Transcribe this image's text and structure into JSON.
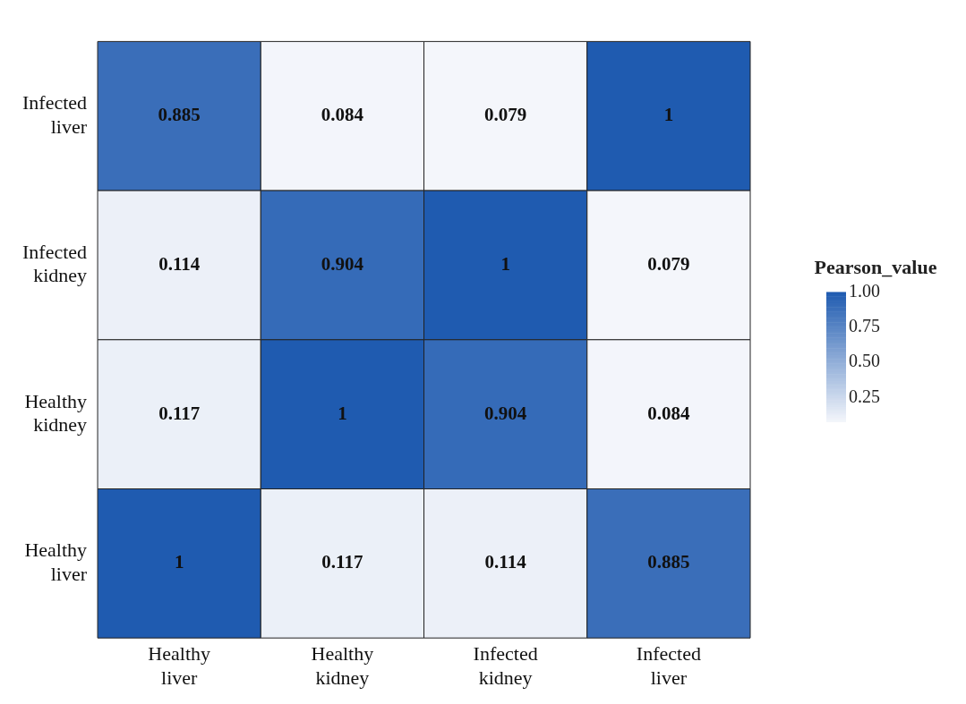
{
  "chart_data": {
    "type": "heatmap",
    "categories": [
      "Healthy liver",
      "Healthy kidney",
      "Infected kidney",
      "Infected liver"
    ],
    "y_categories": [
      "Infected liver",
      "Infected kidney",
      "Healthy kidney",
      "Healthy liver"
    ],
    "cells": [
      [
        0.885,
        0.084,
        0.079,
        1
      ],
      [
        0.114,
        0.904,
        1,
        0.079
      ],
      [
        0.117,
        1,
        0.904,
        0.084
      ],
      [
        1,
        0.117,
        0.114,
        0.885
      ]
    ],
    "data_labels": true,
    "clabel": "Pearson_value",
    "clim": [
      0.079,
      1
    ],
    "cticks": [
      {
        "value": 0.25,
        "label": "0.25"
      },
      {
        "value": 0.5,
        "label": "0.50"
      },
      {
        "value": 0.75,
        "label": "0.75"
      },
      {
        "value": 1,
        "label": "1.00"
      }
    ]
  }
}
